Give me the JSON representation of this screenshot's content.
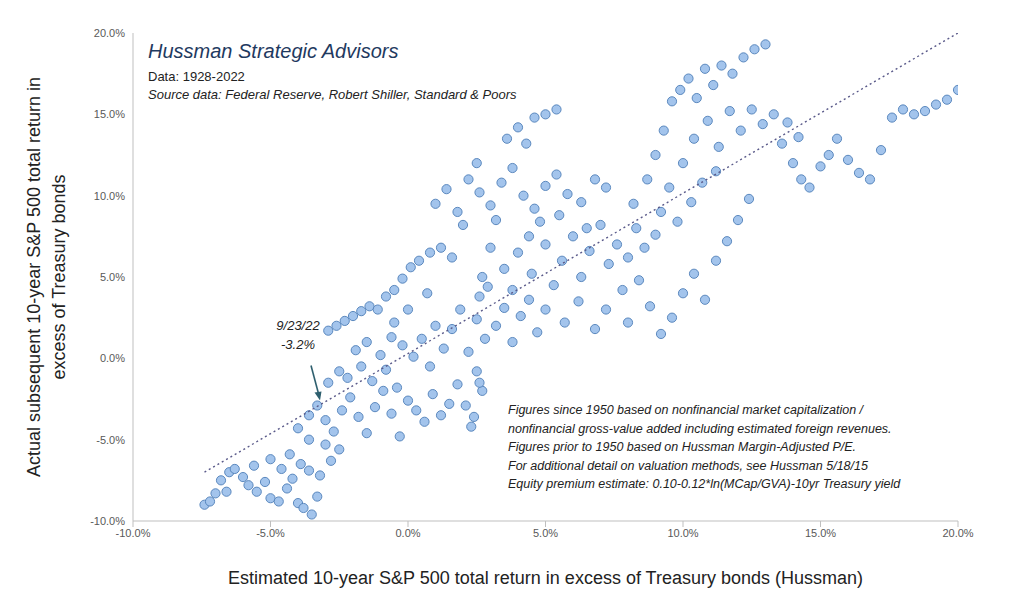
{
  "chart_data": {
    "type": "scatter",
    "title": "Hussman Strategic Advisors",
    "subtitle": [
      "Data: 1928-2022",
      "Source data: Federal Reserve, Robert Shiller, Standard & Poors"
    ],
    "x_label": "Estimated 10-year S&P 500 total return in excess of Treasury bonds (Hussman)",
    "y_label": [
      "Actual subsequent 10-year S&P 500 total return in",
      "excess of Treasury bonds"
    ],
    "xlim": [
      -10,
      20
    ],
    "ylim": [
      -10,
      20
    ],
    "xticks": [
      {
        "value": -10,
        "label": "-10.0%"
      },
      {
        "value": -5,
        "label": "-5.0%"
      },
      {
        "value": 0,
        "label": "0.0%"
      },
      {
        "value": 5,
        "label": "5.0%"
      },
      {
        "value": 10,
        "label": "10.0%"
      },
      {
        "value": 15,
        "label": "15.0%"
      },
      {
        "value": 20,
        "label": "20.0%"
      }
    ],
    "yticks": [
      {
        "value": -10,
        "label": "-10.0%"
      },
      {
        "value": -5,
        "label": "-5.0%"
      },
      {
        "value": 0,
        "label": "0.0%"
      },
      {
        "value": 5,
        "label": "5.0%"
      },
      {
        "value": 10,
        "label": "10.0%"
      },
      {
        "value": 15,
        "label": "15.0%"
      },
      {
        "value": 20,
        "label": "20.0%"
      }
    ],
    "grid": false,
    "annotations": [
      {
        "text": [
          "9/23/22",
          "-3.2%"
        ],
        "x": -3.2,
        "y": -2.9
      }
    ],
    "notes": [
      "Figures since 1950 based on nonfinancial market capitalization /",
      "nonfinancial gross-value added including estimated foreign revenues.",
      "Figures prior to 1950 based on Hussman Margin-Adjusted P/E.",
      "For additional detail on valuation methods, see Hussman 5/18/15",
      "Equity premium estimate: 0.10-0.12*ln(MCap/GVA)-10yr Treasury yield"
    ],
    "series": [
      {
        "type": "scatter",
        "marker": "circle",
        "color": "#a3c4ec",
        "x": [
          -7.4,
          -7.2,
          -7.0,
          -6.8,
          -6.5,
          -6.3,
          -6.0,
          -5.8,
          -5.5,
          -5.2,
          -5.0,
          -4.7,
          -4.4,
          -4.2,
          -4.0,
          -3.8,
          -3.5,
          -3.3,
          -6.6,
          -5.6,
          -5.0,
          -4.6,
          -4.3,
          -3.9,
          -3.6,
          -3.2,
          -2.8,
          -2.5,
          -3.0,
          -3.6,
          -4.0,
          -3.6,
          -3.3,
          -3.0,
          -2.7,
          -2.4,
          -2.1,
          -1.8,
          -1.5,
          -1.2,
          -0.9,
          -0.6,
          -0.3,
          0.0,
          -2.9,
          -2.5,
          -2.2,
          -1.7,
          -1.3,
          -0.8,
          -0.4,
          0.3,
          0.6,
          0.9,
          1.2,
          1.5,
          1.8,
          2.1,
          2.4,
          2.7,
          -2.9,
          -2.6,
          -2.3,
          -2.0,
          -1.7,
          -1.4,
          -1.1,
          -0.8,
          -0.5,
          -0.2,
          0.1,
          0.4,
          0.8,
          1.2,
          1.6,
          -1.9,
          -1.5,
          -1.0,
          -0.6,
          -0.2,
          0.2,
          0.5,
          0.8,
          1.0,
          1.3,
          1.6,
          1.9,
          2.2,
          2.5,
          2.8,
          2.5,
          2.6,
          2.7,
          2.9,
          3.2,
          3.5,
          3.8,
          4.1,
          4.4,
          4.7,
          1.0,
          1.4,
          1.8,
          2.2,
          2.6,
          3.0,
          3.4,
          3.8,
          4.2,
          4.6,
          5.0,
          5.4,
          5.8,
          6.3,
          6.8,
          7.2,
          2.5,
          3.6,
          4.0,
          4.6,
          5.0,
          5.4,
          4.3,
          2.0,
          3.2,
          3.5,
          4.0,
          4.5,
          5.0,
          5.3,
          5.6,
          6.0,
          6.3,
          6.6,
          7.0,
          7.3,
          7.6,
          8.0,
          8.3,
          8.6,
          9.0,
          5.0,
          5.7,
          6.2,
          6.8,
          7.2,
          7.8,
          8.0,
          8.4,
          3.0,
          4.8,
          5.5,
          6.5,
          3.8,
          4.4,
          8.2,
          8.7,
          9.0,
          9.3,
          9.6,
          9.9,
          10.2,
          10.5,
          10.8,
          11.1,
          11.4,
          11.8,
          12.2,
          12.6,
          13.0,
          9.5,
          10.0,
          10.4,
          10.9,
          11.3,
          11.7,
          12.1,
          12.5,
          12.9,
          13.3,
          9.2,
          9.8,
          10.3,
          10.7,
          11.2,
          13.6,
          14.0,
          14.3,
          14.6,
          15.0,
          15.3,
          15.6,
          16.0,
          16.4,
          16.8,
          17.2,
          17.6,
          18.0,
          18.4,
          18.8,
          19.2,
          19.6,
          20.0,
          13.8,
          14.2,
          8.8,
          9.2,
          9.6,
          10.0,
          10.4,
          10.8,
          11.2,
          11.6,
          12.0,
          12.4,
          2.3,
          2.6,
          0.0,
          -0.5,
          0.7
        ],
        "values": [
          -9.0,
          -8.8,
          -8.3,
          -7.5,
          -7.0,
          -6.8,
          -7.3,
          -7.8,
          -8.2,
          -7.6,
          -8.6,
          -8.8,
          -8.0,
          -7.4,
          -8.9,
          -9.2,
          -9.6,
          -8.5,
          -8.2,
          -6.6,
          -6.2,
          -6.8,
          -5.9,
          -6.5,
          -6.9,
          -7.2,
          -6.3,
          -5.6,
          -5.3,
          -5.0,
          -4.3,
          -3.5,
          -2.9,
          -3.8,
          -4.5,
          -3.2,
          -2.4,
          -3.6,
          -4.6,
          -3.0,
          -2.0,
          -3.4,
          -4.8,
          -2.6,
          -1.5,
          -0.8,
          -1.2,
          -0.5,
          -1.4,
          -0.7,
          -1.8,
          -3.2,
          -3.9,
          -2.2,
          -3.5,
          -2.8,
          -1.6,
          -2.9,
          -3.6,
          -2.0,
          1.7,
          2.0,
          2.3,
          2.6,
          2.9,
          3.2,
          3.0,
          3.8,
          4.2,
          4.9,
          5.6,
          6.0,
          6.5,
          6.8,
          6.2,
          0.5,
          1.0,
          0.2,
          1.3,
          0.8,
          0.1,
          1.2,
          -0.5,
          2.0,
          0.6,
          1.8,
          3.0,
          0.4,
          2.4,
          1.2,
          -0.8,
          3.8,
          5.0,
          4.4,
          2.0,
          3.1,
          1.0,
          2.6,
          3.6,
          1.6,
          9.5,
          10.4,
          9.0,
          11.0,
          10.2,
          9.4,
          10.8,
          11.7,
          10.0,
          9.2,
          10.6,
          11.3,
          10.1,
          9.6,
          11.0,
          10.5,
          12.0,
          13.5,
          14.2,
          14.8,
          15.0,
          15.3,
          13.2,
          8.2,
          8.5,
          5.5,
          6.5,
          5.2,
          7.0,
          4.5,
          6.0,
          7.5,
          5.0,
          6.6,
          8.2,
          5.8,
          7.0,
          6.2,
          8.0,
          6.8,
          7.6,
          3.0,
          2.2,
          3.5,
          1.8,
          3.0,
          4.2,
          2.2,
          4.8,
          6.8,
          8.4,
          8.8,
          8.0,
          4.2,
          7.5,
          9.5,
          11.0,
          12.5,
          14.0,
          15.8,
          16.5,
          17.2,
          16.0,
          17.8,
          16.8,
          18.0,
          17.5,
          18.5,
          19.0,
          19.3,
          10.5,
          12.0,
          13.5,
          14.6,
          13.0,
          15.2,
          14.0,
          15.3,
          14.4,
          15.0,
          9.0,
          8.4,
          9.6,
          10.8,
          11.5,
          13.2,
          12.0,
          11.0,
          10.5,
          11.8,
          12.5,
          13.5,
          12.2,
          11.4,
          11.0,
          12.8,
          14.8,
          15.3,
          15.0,
          15.2,
          15.6,
          15.9,
          16.5,
          14.5,
          13.6,
          3.2,
          1.5,
          2.5,
          4.0,
          5.2,
          3.6,
          6.0,
          7.2,
          8.5,
          9.8,
          -4.2,
          -1.5,
          3.0,
          2.2,
          4.0
        ]
      },
      {
        "type": "line",
        "line_style": "dotted",
        "color": "#5a5a8a",
        "x": [
          -7.4,
          20.0
        ],
        "values": [
          -7.0,
          20.0
        ]
      }
    ]
  }
}
